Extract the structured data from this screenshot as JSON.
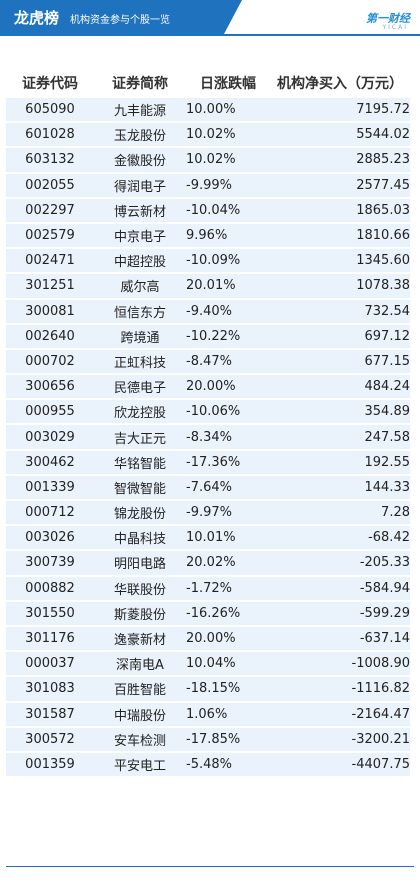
{
  "header": {
    "title": "龙虎榜",
    "subtitle": "机构资金参与个股一览",
    "logo_text": "第一财经",
    "logo_subtext": "YICAI"
  },
  "colors": {
    "banner": "#1f73be",
    "positive": "#e3262d",
    "negative": "#1aa84a",
    "row_bg": "#eaf3fb"
  },
  "table": {
    "columns": [
      "证券代码",
      "证券简称",
      "日涨跌幅",
      "机构净买入（万元）"
    ],
    "rows": [
      {
        "code": "605090",
        "name": "九丰能源",
        "change": "10.00%",
        "net": "7195.72"
      },
      {
        "code": "601028",
        "name": "玉龙股份",
        "change": "10.02%",
        "net": "5544.02"
      },
      {
        "code": "603132",
        "name": "金徽股份",
        "change": "10.02%",
        "net": "2885.23"
      },
      {
        "code": "002055",
        "name": "得润电子",
        "change": "-9.99%",
        "net": "2577.45"
      },
      {
        "code": "002297",
        "name": "博云新材",
        "change": "-10.04%",
        "net": "1865.03"
      },
      {
        "code": "002579",
        "name": "中京电子",
        "change": "9.96%",
        "net": "1810.66"
      },
      {
        "code": "002471",
        "name": "中超控股",
        "change": "-10.09%",
        "net": "1345.60"
      },
      {
        "code": "301251",
        "name": "威尔高",
        "change": "20.01%",
        "net": "1078.38"
      },
      {
        "code": "300081",
        "name": "恒信东方",
        "change": "-9.40%",
        "net": "732.54"
      },
      {
        "code": "002640",
        "name": "跨境通",
        "change": "-10.22%",
        "net": "697.12"
      },
      {
        "code": "000702",
        "name": "正虹科技",
        "change": "-8.47%",
        "net": "677.15"
      },
      {
        "code": "300656",
        "name": "民德电子",
        "change": "20.00%",
        "net": "484.24"
      },
      {
        "code": "000955",
        "name": "欣龙控股",
        "change": "-10.06%",
        "net": "354.89"
      },
      {
        "code": "003029",
        "name": "吉大正元",
        "change": "-8.34%",
        "net": "247.58"
      },
      {
        "code": "300462",
        "name": "华铭智能",
        "change": "-17.36%",
        "net": "192.55"
      },
      {
        "code": "001339",
        "name": "智微智能",
        "change": "-7.64%",
        "net": "144.33"
      },
      {
        "code": "000712",
        "name": "锦龙股份",
        "change": "-9.97%",
        "net": "7.28"
      },
      {
        "code": "003026",
        "name": "中晶科技",
        "change": "10.01%",
        "net": "-68.42"
      },
      {
        "code": "300739",
        "name": "明阳电路",
        "change": "20.02%",
        "net": "-205.33"
      },
      {
        "code": "000882",
        "name": "华联股份",
        "change": "-1.72%",
        "net": "-584.94"
      },
      {
        "code": "301550",
        "name": "斯菱股份",
        "change": "-16.26%",
        "net": "-599.29"
      },
      {
        "code": "301176",
        "name": "逸豪新材",
        "change": "20.00%",
        "net": "-637.14"
      },
      {
        "code": "000037",
        "name": "深南电A",
        "change": "10.04%",
        "net": "-1008.90"
      },
      {
        "code": "301083",
        "name": "百胜智能",
        "change": "-18.15%",
        "net": "-1116.82"
      },
      {
        "code": "301587",
        "name": "中瑞股份",
        "change": "1.06%",
        "net": "-2164.47"
      },
      {
        "code": "300572",
        "name": "安车检测",
        "change": "-17.85%",
        "net": "-3200.21"
      },
      {
        "code": "001359",
        "name": "平安电工",
        "change": "-5.48%",
        "net": "-4407.75"
      }
    ]
  }
}
